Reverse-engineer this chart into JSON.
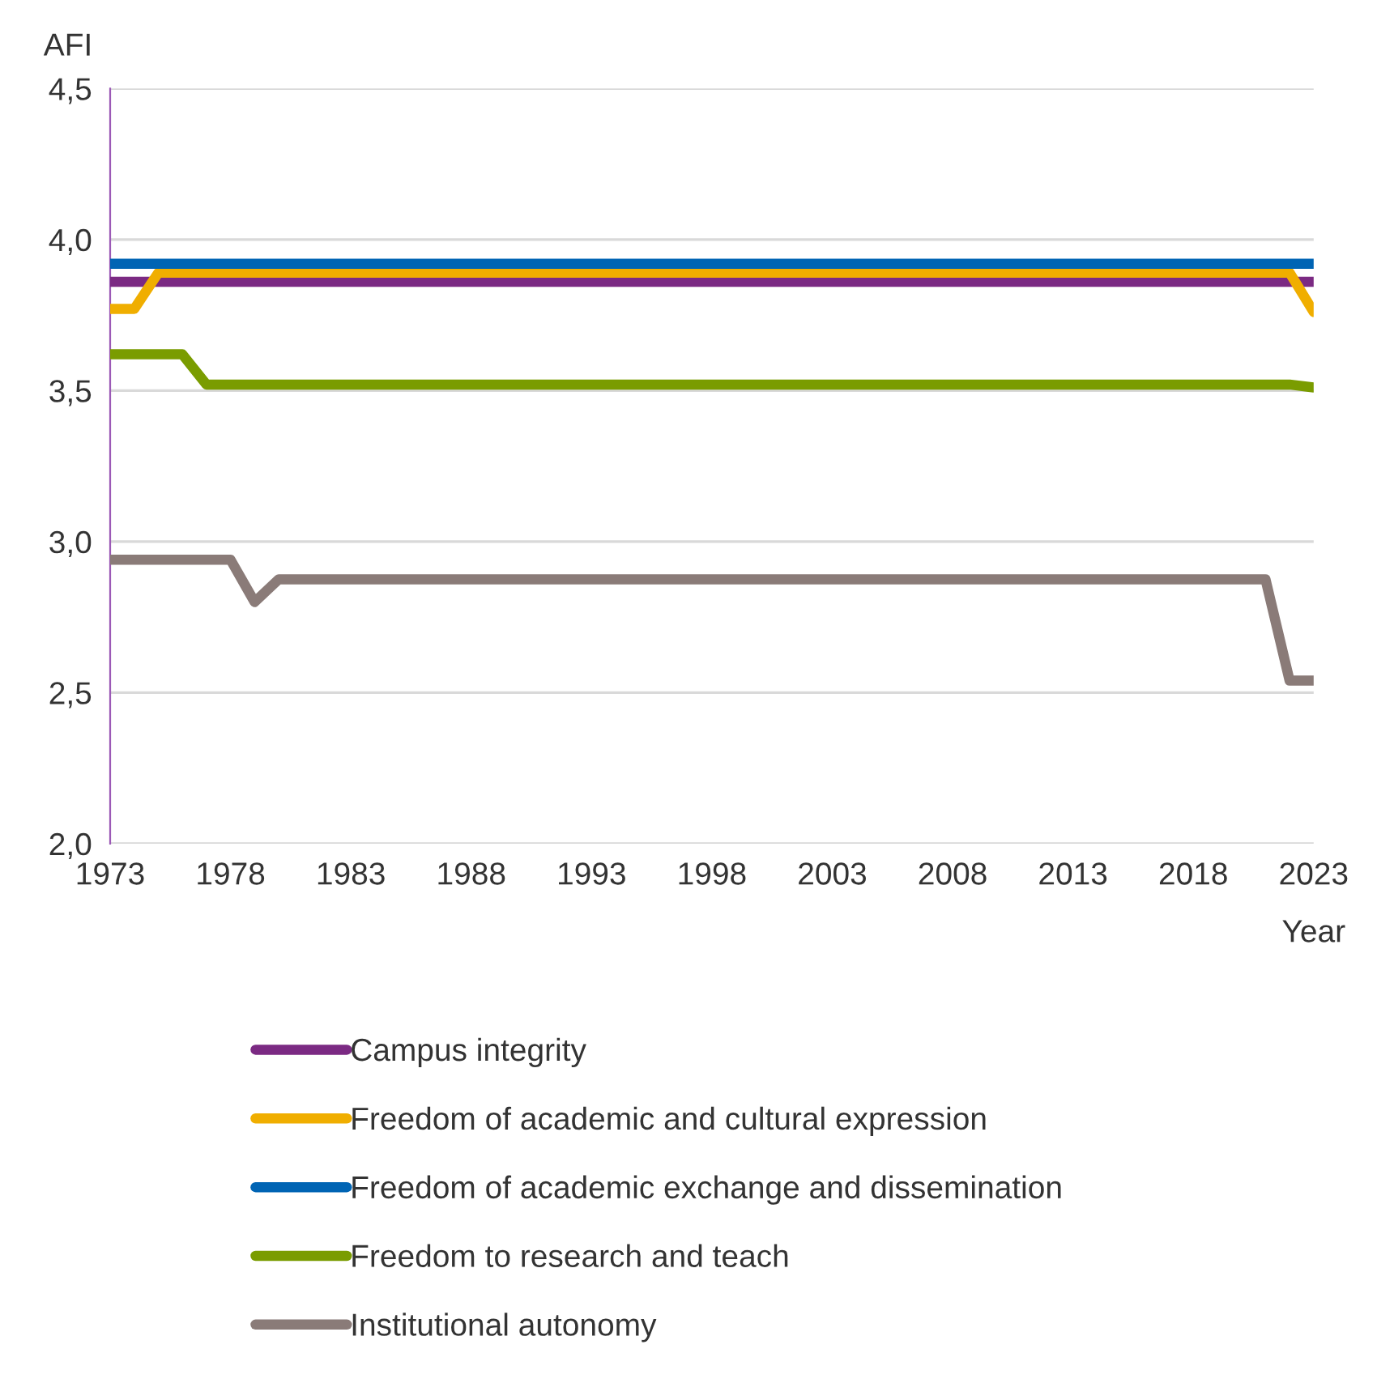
{
  "chart_data": {
    "type": "line",
    "ylabel": "AFI",
    "xlabel": "Year",
    "xlim": [
      1973,
      2023
    ],
    "xticks": [
      1973,
      1978,
      1983,
      1988,
      1993,
      1998,
      2003,
      2008,
      2013,
      2018,
      2023
    ],
    "ylim": [
      2.0,
      4.5
    ],
    "yticks": [
      {
        "value": 2.0,
        "label": "2,0"
      },
      {
        "value": 2.5,
        "label": "2,5"
      },
      {
        "value": 3.0,
        "label": "3,0"
      },
      {
        "value": 3.5,
        "label": "3,5"
      },
      {
        "value": 4.0,
        "label": "4,0"
      },
      {
        "value": 4.5,
        "label": "4,5"
      }
    ],
    "grid": "y",
    "legend": "bottom",
    "marker": "none",
    "line_style": "solid",
    "series": [
      {
        "name": "Campus integrity",
        "color": "#7b2a83",
        "x": [
          1973,
          2023
        ],
        "values": [
          3.86,
          3.86
        ]
      },
      {
        "name": "Freedom of academic and cultural expression",
        "color": "#f0ae00",
        "x": [
          1973,
          1974,
          1975,
          2022,
          2023
        ],
        "values": [
          3.77,
          3.77,
          3.89,
          3.89,
          3.76
        ]
      },
      {
        "name": "Freedom of academic exchange and dissemination",
        "color": "#0064b4",
        "x": [
          1973,
          2023
        ],
        "values": [
          3.92,
          3.92
        ]
      },
      {
        "name": "Freedom to research and teach",
        "color": "#7a9c00",
        "x": [
          1973,
          1976,
          1977,
          2022,
          2023
        ],
        "values": [
          3.62,
          3.62,
          3.52,
          3.52,
          3.51
        ]
      },
      {
        "name": "Institutional autonomy",
        "color": "#8a7b78",
        "x": [
          1973,
          1978,
          1979,
          1980,
          2021,
          2022,
          2023
        ],
        "values": [
          2.94,
          2.94,
          2.8,
          2.875,
          2.875,
          2.54,
          2.54
        ]
      }
    ]
  }
}
